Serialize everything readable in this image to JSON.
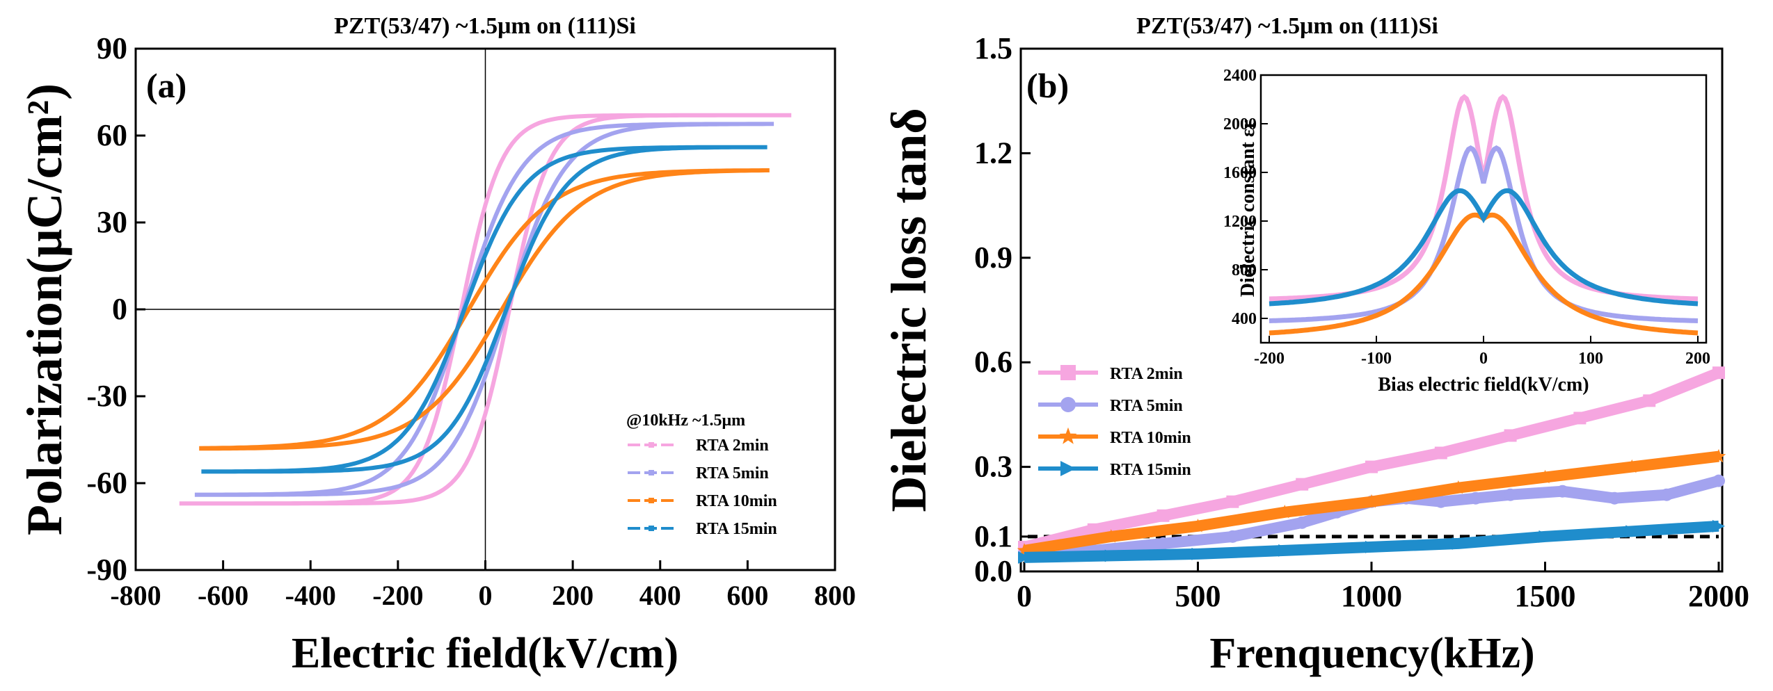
{
  "chart_data": [
    {
      "panel_label": "(a)",
      "type": "line",
      "title": "PZT(53/47)  ~1.5μm on (111)Si",
      "xlabel": "Electric field(kV/cm)",
      "ylabel": "Polarization(μC/cm²)",
      "xlim": [
        -800,
        800
      ],
      "ylim": [
        -90,
        90
      ],
      "xticks": [
        "-800",
        "-600",
        "-400",
        "-200",
        "0",
        "200",
        "400",
        "600",
        "800"
      ],
      "yticks": [
        "-90",
        "-60",
        "-30",
        "0",
        "30",
        "60",
        "90"
      ],
      "legend_title": "@10kHz ~1.5μm",
      "series": [
        {
          "name": "RTA 2min",
          "color": "#f6a6e0",
          "emax": 700,
          "pmax": 67,
          "pr": 32,
          "ec": 55,
          "a": 95
        },
        {
          "name": "RTA 5min",
          "color": "#a3a3ef",
          "emax": 660,
          "pmax": 64,
          "pr": 18,
          "ec": 50,
          "a": 140
        },
        {
          "name": "RTA 10min",
          "color": "#ff8418",
          "emax": 650,
          "pmax": 48,
          "pr": 11,
          "ec": 38,
          "a": 200
        },
        {
          "name": "RTA 15min",
          "color": "#1f8dcc",
          "emax": 645,
          "pmax": 56,
          "pr": 16,
          "ec": 48,
          "a": 145
        }
      ]
    },
    {
      "panel_label": "(b)",
      "type": "line",
      "title": "PZT(53/47)  ~1.5μm on (111)Si",
      "xlabel": "Frenquency(kHz)",
      "ylabel": "Dielectric loss tanδ",
      "xlim": [
        0,
        2000
      ],
      "ylim": [
        0,
        1.5
      ],
      "xticks": [
        "0",
        "500",
        "1000",
        "1500",
        "2000"
      ],
      "yticks": [
        "0.0",
        "0.1",
        "0.3",
        "0.6",
        "0.9",
        "1.2",
        "1.5"
      ],
      "reference_line": 0.1,
      "series": [
        {
          "name": "RTA 2min",
          "color": "#f6a6e0",
          "marker": "square",
          "x": [
            0,
            200,
            400,
            600,
            800,
            1000,
            1200,
            1400,
            1600,
            1800,
            2000
          ],
          "y": [
            0.07,
            0.12,
            0.16,
            0.2,
            0.25,
            0.3,
            0.34,
            0.39,
            0.44,
            0.49,
            0.57
          ]
        },
        {
          "name": "RTA 5min",
          "color": "#a3a3ef",
          "marker": "circle",
          "x": [
            0,
            200,
            400,
            600,
            800,
            900,
            1000,
            1100,
            1200,
            1300,
            1400,
            1550,
            1700,
            1850,
            2000
          ],
          "y": [
            0.05,
            0.06,
            0.08,
            0.1,
            0.14,
            0.17,
            0.2,
            0.21,
            0.2,
            0.21,
            0.22,
            0.23,
            0.21,
            0.22,
            0.26
          ]
        },
        {
          "name": "RTA 10min",
          "color": "#ff8418",
          "marker": "star",
          "x": [
            0,
            250,
            500,
            750,
            1000,
            1250,
            1500,
            1750,
            2000
          ],
          "y": [
            0.06,
            0.1,
            0.13,
            0.17,
            0.2,
            0.24,
            0.27,
            0.3,
            0.33
          ]
        },
        {
          "name": "RTA 15min",
          "color": "#1f8dcc",
          "marker": "triangle-right",
          "x": [
            0,
            250,
            500,
            750,
            1000,
            1250,
            1500,
            1750,
            2000
          ],
          "y": [
            0.04,
            0.045,
            0.05,
            0.06,
            0.07,
            0.08,
            0.1,
            0.115,
            0.13
          ]
        }
      ],
      "inset": {
        "type": "line",
        "xlabel": "Bias electric field(kV/cm)",
        "ylabel": "Dielectric constant εr",
        "xlim": [
          -200,
          200
        ],
        "ylim": [
          200,
          2400
        ],
        "xticks": [
          "-200",
          "-100",
          "0",
          "100",
          "200"
        ],
        "yticks": [
          "400",
          "800",
          "1200",
          "1600",
          "2000",
          "2400"
        ],
        "series": [
          {
            "name": "RTA 2min",
            "color": "#f6a6e0",
            "peak": 2220,
            "offset": 18,
            "edge": 560,
            "width": 22
          },
          {
            "name": "RTA 5min",
            "color": "#a3a3ef",
            "peak": 1800,
            "offset": 12,
            "edge": 380,
            "width": 24
          },
          {
            "name": "RTA 10min",
            "color": "#ff8418",
            "peak": 1250,
            "offset": 8,
            "edge": 280,
            "width": 45
          },
          {
            "name": "RTA 15min",
            "color": "#1f8dcc",
            "peak": 1450,
            "offset": 22,
            "edge": 520,
            "width": 40
          }
        ]
      }
    }
  ]
}
